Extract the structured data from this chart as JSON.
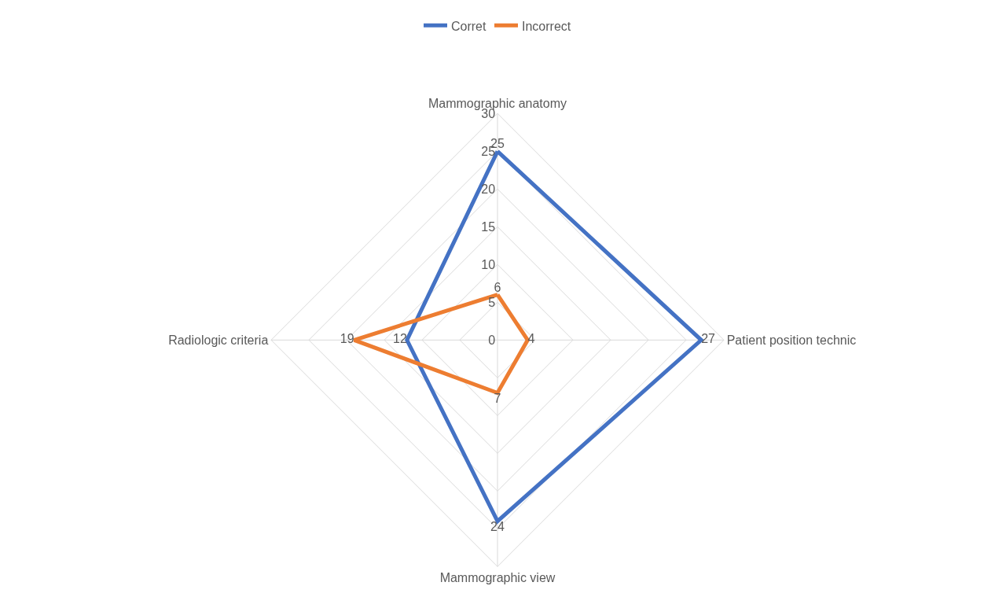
{
  "chart_data": {
    "type": "radar",
    "categories": [
      "Mammographic anatomy",
      "Patient position technic",
      "Mammographic view",
      "Radiologic criteria"
    ],
    "series": [
      {
        "name": "Corret",
        "color": "#4472c4",
        "values": [
          25,
          27,
          24,
          12
        ]
      },
      {
        "name": "Incorrect",
        "color": "#ed7d31",
        "values": [
          6,
          4,
          7,
          19
        ]
      }
    ],
    "ylim": [
      0,
      30
    ],
    "yticks": [
      0,
      5,
      10,
      15,
      20,
      25,
      30
    ],
    "grid": true,
    "legend": "top",
    "data_labels": true,
    "marker": "none",
    "line_style": "solid"
  }
}
